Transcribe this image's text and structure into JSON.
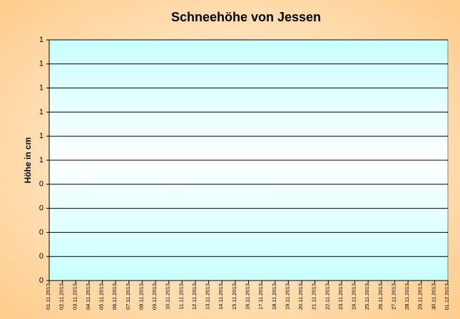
{
  "chart_data": {
    "type": "line",
    "title": "Schneehöhe von Jessen",
    "y_label": "Höhe in cm",
    "categories": [
      "01.11.2013",
      "02.11.2013",
      "03.11.2013",
      "04.11.2013",
      "05.11.2013",
      "06.11.2013",
      "07.11.2013",
      "08.11.2013",
      "09.11.2013",
      "10.11.2013",
      "11.11.2013",
      "12.11.2013",
      "13.11.2013",
      "14.11.2013",
      "15.11.2013",
      "16.11.2013",
      "17.11.2013",
      "18.11.2013",
      "19.11.2013",
      "20.11.2013",
      "21.11.2013",
      "22.11.2013",
      "23.11.2013",
      "24.11.2013",
      "25.11.2013",
      "26.11.2013",
      "27.11.2013",
      "28.11.2013",
      "29.11.2013",
      "30.11.2013",
      "01.12.2013"
    ],
    "ylim": [
      0,
      1
    ],
    "yticks": [
      0,
      {
        "value": 0.1,
        "label": "0"
      },
      {
        "value": 0.2,
        "label": "0"
      },
      {
        "value": 0.3,
        "label": "0"
      },
      {
        "value": 0.4,
        "label": "0"
      },
      {
        "value": 0.5,
        "label": "1"
      },
      {
        "value": 0.6,
        "label": "1"
      },
      {
        "value": 0.7,
        "label": "1"
      },
      {
        "value": 0.8,
        "label": "1"
      },
      {
        "value": 0.9,
        "label": "1"
      },
      1
    ],
    "grid": true
  }
}
